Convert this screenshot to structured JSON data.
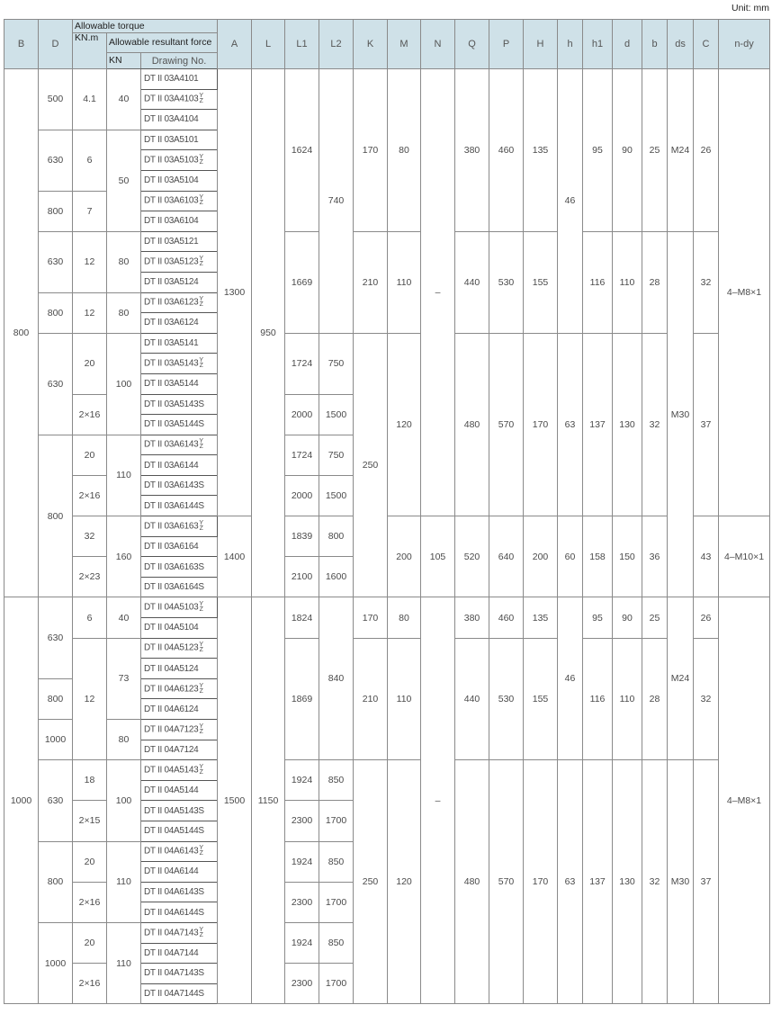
{
  "unit_label": "Unit: mm",
  "header": {
    "B": "B",
    "D": "D",
    "torque_group": "Allowable torque",
    "torque_unit": "KN.m",
    "force_group": "Allowable resultant force",
    "force_unit": "KN",
    "drawing": "Drawing No.",
    "rest": [
      "A",
      "L",
      "L1",
      "L2",
      "K",
      "M",
      "N",
      "Q",
      "P",
      "H",
      "h",
      "h1",
      "d",
      "b",
      "ds",
      "C",
      "n-dy"
    ]
  },
  "drawings": [
    {
      "no": "DT II 03A4101"
    },
    {
      "no": "DT II 03A4103",
      "sup": "Y",
      "sub": "Z"
    },
    {
      "no": "DT II 03A4104"
    },
    {
      "no": "DT II 03A5101"
    },
    {
      "no": "DT II 03A5103",
      "sup": "Y",
      "sub": "Z"
    },
    {
      "no": "DT II 03A5104"
    },
    {
      "no": "DT II 03A6103",
      "sup": "Y",
      "sub": "Z"
    },
    {
      "no": "DT II 03A6104"
    },
    {
      "no": "DT II 03A5121"
    },
    {
      "no": "DT II 03A5123",
      "sup": "Y",
      "sub": "Z"
    },
    {
      "no": "DT II 03A5124"
    },
    {
      "no": "DT II 03A6123",
      "sup": "Y",
      "sub": "Z"
    },
    {
      "no": "DT II 03A6124"
    },
    {
      "no": "DT II 03A5141"
    },
    {
      "no": "DT II 03A5143",
      "sup": "Y",
      "sub": "Z"
    },
    {
      "no": "DT II 03A5144"
    },
    {
      "no": "DT II 03A5143S"
    },
    {
      "no": "DT II 03A5144S"
    },
    {
      "no": "DT II 03A6143",
      "sup": "Y",
      "sub": "Z"
    },
    {
      "no": "DT II 03A6144"
    },
    {
      "no": "DT II 03A6143S"
    },
    {
      "no": "DT II 03A6144S"
    },
    {
      "no": "DT II 03A6163",
      "sup": "Y",
      "sub": "Z"
    },
    {
      "no": "DT II 03A6164"
    },
    {
      "no": "DT II 03A6163S"
    },
    {
      "no": "DT II 03A6164S"
    },
    {
      "no": "DT II 04A5103",
      "sup": "Y",
      "sub": "Z"
    },
    {
      "no": "DT II 04A5104"
    },
    {
      "no": "DT II 04A5123",
      "sup": "Y",
      "sub": "Z"
    },
    {
      "no": "DT II 04A5124"
    },
    {
      "no": "DT II 04A6123",
      "sup": "Y",
      "sub": "Z"
    },
    {
      "no": "DT II 04A6124"
    },
    {
      "no": "DT II 04A7123",
      "sup": "Y",
      "sub": "Z"
    },
    {
      "no": "DT II 04A7124"
    },
    {
      "no": "DT II 04A5143",
      "sup": "Y",
      "sub": "Z"
    },
    {
      "no": "DT II 04A5144"
    },
    {
      "no": "DT II 04A5143S"
    },
    {
      "no": "DT II 04A5144S"
    },
    {
      "no": "DT II 04A6143",
      "sup": "Y",
      "sub": "Z"
    },
    {
      "no": "DT II 04A6144"
    },
    {
      "no": "DT II 04A6143S"
    },
    {
      "no": "DT II 04A6144S"
    },
    {
      "no": "DT II 04A7143",
      "sup": "Y",
      "sub": "Z"
    },
    {
      "no": "DT II 04A7144"
    },
    {
      "no": "DT II 04A7143S"
    },
    {
      "no": "DT II 04A7144S"
    }
  ],
  "columns_before": {
    "B": [
      [
        "800",
        26
      ],
      [
        "1000",
        20
      ]
    ],
    "D": [
      [
        "500",
        3
      ],
      [
        "630",
        3
      ],
      [
        "800",
        2
      ],
      [
        "630",
        3
      ],
      [
        "800",
        2
      ],
      [
        "630",
        5
      ],
      [
        "800",
        8
      ],
      [
        "630",
        4
      ],
      [
        "800",
        2
      ],
      [
        "1000",
        2
      ],
      [
        "630",
        4
      ],
      [
        "800",
        4
      ],
      [
        "1000",
        4
      ]
    ],
    "KN.m": [
      [
        "4.1",
        3
      ],
      [
        "6",
        3
      ],
      [
        "7",
        2
      ],
      [
        "12",
        3
      ],
      [
        "12",
        2
      ],
      [
        "20",
        3
      ],
      [
        "2×16",
        2
      ],
      [
        "20",
        2
      ],
      [
        "2×16",
        2
      ],
      [
        "32",
        2
      ],
      [
        "2×23",
        2
      ],
      [
        "6",
        2
      ],
      [
        "12",
        6
      ],
      [
        "18",
        2
      ],
      [
        "2×15",
        2
      ],
      [
        "20",
        2
      ],
      [
        "2×16",
        2
      ],
      [
        "20",
        2
      ],
      [
        "2×16",
        2
      ]
    ],
    "KN": [
      [
        "40",
        3
      ],
      [
        "50",
        5
      ],
      [
        "80",
        3
      ],
      [
        "80",
        2
      ],
      [
        "100",
        5
      ],
      [
        "110",
        4
      ],
      [
        "160",
        4
      ],
      [
        "40",
        2
      ],
      [
        "73",
        4
      ],
      [
        "80",
        2
      ],
      [
        "100",
        4
      ],
      [
        "110",
        4
      ],
      [
        "110",
        4
      ]
    ]
  },
  "columns_after": {
    "A": [
      [
        "1300",
        22
      ],
      [
        "1400",
        4
      ],
      [
        "1500",
        20
      ]
    ],
    "L": [
      [
        "950",
        26
      ],
      [
        "1150",
        20
      ]
    ],
    "L1": [
      [
        "1624",
        8
      ],
      [
        "1669",
        5
      ],
      [
        "1724",
        3
      ],
      [
        "2000",
        2
      ],
      [
        "1724",
        2
      ],
      [
        "2000",
        2
      ],
      [
        "1839",
        2
      ],
      [
        "2100",
        2
      ],
      [
        "1824",
        2
      ],
      [
        "1869",
        6
      ],
      [
        "1924",
        2
      ],
      [
        "2300",
        2
      ],
      [
        "1924",
        2
      ],
      [
        "2300",
        2
      ],
      [
        "1924",
        2
      ],
      [
        "2300",
        2
      ]
    ],
    "L2": [
      [
        "740",
        13
      ],
      [
        "750",
        3
      ],
      [
        "1500",
        2
      ],
      [
        "750",
        2
      ],
      [
        "1500",
        2
      ],
      [
        "800",
        2
      ],
      [
        "1600",
        2
      ],
      [
        "840",
        8
      ],
      [
        "850",
        2
      ],
      [
        "1700",
        2
      ],
      [
        "850",
        2
      ],
      [
        "1700",
        2
      ],
      [
        "850",
        2
      ],
      [
        "1700",
        2
      ]
    ],
    "K": [
      [
        "170",
        8
      ],
      [
        "210",
        5
      ],
      [
        "250",
        13
      ],
      [
        "170",
        2
      ],
      [
        "210",
        6
      ],
      [
        "250",
        12
      ]
    ],
    "M": [
      [
        "80",
        8
      ],
      [
        "110",
        5
      ],
      [
        "120",
        9
      ],
      [
        "200",
        4
      ],
      [
        "80",
        2
      ],
      [
        "110",
        6
      ],
      [
        "120",
        12
      ]
    ],
    "N": [
      [
        "–",
        22
      ],
      [
        "105",
        4
      ],
      [
        "–",
        20
      ]
    ],
    "Q": [
      [
        "380",
        8
      ],
      [
        "440",
        5
      ],
      [
        "480",
        9
      ],
      [
        "520",
        4
      ],
      [
        "380",
        2
      ],
      [
        "440",
        6
      ],
      [
        "480",
        12
      ]
    ],
    "P": [
      [
        "460",
        8
      ],
      [
        "530",
        5
      ],
      [
        "570",
        9
      ],
      [
        "640",
        4
      ],
      [
        "460",
        2
      ],
      [
        "530",
        6
      ],
      [
        "570",
        12
      ]
    ],
    "H": [
      [
        "135",
        8
      ],
      [
        "155",
        5
      ],
      [
        "170",
        9
      ],
      [
        "200",
        4
      ],
      [
        "135",
        2
      ],
      [
        "155",
        6
      ],
      [
        "170",
        12
      ]
    ],
    "h": [
      [
        "46",
        13
      ],
      [
        "63",
        9
      ],
      [
        "60",
        4
      ],
      [
        "46",
        8
      ],
      [
        "63",
        12
      ]
    ],
    "h1": [
      [
        "95",
        8
      ],
      [
        "116",
        5
      ],
      [
        "137",
        9
      ],
      [
        "158",
        4
      ],
      [
        "95",
        2
      ],
      [
        "116",
        6
      ],
      [
        "137",
        12
      ]
    ],
    "d": [
      [
        "90",
        8
      ],
      [
        "110",
        5
      ],
      [
        "130",
        9
      ],
      [
        "150",
        4
      ],
      [
        "90",
        2
      ],
      [
        "110",
        6
      ],
      [
        "130",
        12
      ]
    ],
    "b": [
      [
        "25",
        8
      ],
      [
        "28",
        5
      ],
      [
        "32",
        9
      ],
      [
        "36",
        4
      ],
      [
        "25",
        2
      ],
      [
        "28",
        6
      ],
      [
        "32",
        12
      ]
    ],
    "ds": [
      [
        "M24",
        8
      ],
      [
        "M30",
        18
      ],
      [
        "M24",
        8
      ],
      [
        "M30",
        12
      ]
    ],
    "C": [
      [
        "26",
        8
      ],
      [
        "32",
        5
      ],
      [
        "37",
        9
      ],
      [
        "43",
        4
      ],
      [
        "26",
        2
      ],
      [
        "32",
        6
      ],
      [
        "37",
        12
      ]
    ],
    "n-dy": [
      [
        "4–M8×1",
        22
      ],
      [
        "4–M10×1",
        4
      ],
      [
        "4–M8×1",
        20
      ]
    ]
  },
  "colors": {
    "header_bg": "#cfe1e8",
    "border": "#8a8a8a"
  }
}
